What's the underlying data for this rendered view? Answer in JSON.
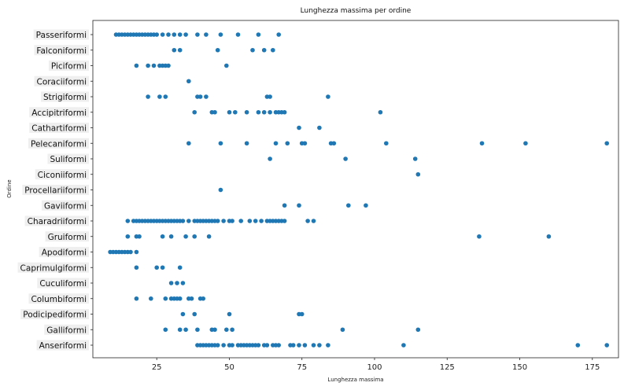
{
  "chart_data": {
    "type": "scatter",
    "title": "Lunghezza massima per ordine",
    "xlabel": "Lunghezza massima",
    "ylabel": "Ordine",
    "xlim": [
      3,
      184
    ],
    "xticks": [
      25,
      50,
      75,
      100,
      125,
      150,
      175
    ],
    "grid": false,
    "marker_color": "#1f77b4",
    "series": [
      {
        "name": "Passeriformi",
        "x": [
          11,
          12,
          13,
          14,
          15,
          16,
          17,
          18,
          19,
          20,
          21,
          22,
          23,
          24,
          25,
          27,
          29,
          31,
          33,
          35,
          39,
          42,
          47,
          53,
          60,
          67
        ]
      },
      {
        "name": "Falconiformi",
        "x": [
          31,
          33,
          46,
          58,
          62,
          65
        ]
      },
      {
        "name": "Piciformi",
        "x": [
          18,
          22,
          24,
          26,
          27,
          28,
          29,
          49
        ]
      },
      {
        "name": "Coraciiformi",
        "x": [
          36
        ]
      },
      {
        "name": "Strigiformi",
        "x": [
          22,
          26,
          28,
          39,
          40,
          42,
          63,
          64,
          84
        ]
      },
      {
        "name": "Accipitriformi",
        "x": [
          38,
          44,
          45,
          50,
          52,
          56,
          60,
          62,
          64,
          66,
          67,
          68,
          69,
          102
        ]
      },
      {
        "name": "Cathartiformi",
        "x": [
          74,
          81
        ]
      },
      {
        "name": "Pelecaniformi",
        "x": [
          36,
          47,
          56,
          66,
          70,
          75,
          76,
          85,
          86,
          104,
          137,
          152,
          180
        ]
      },
      {
        "name": "Suliformi",
        "x": [
          64,
          90,
          114
        ]
      },
      {
        "name": "Ciconiiformi",
        "x": [
          115
        ]
      },
      {
        "name": "Procellariiformi",
        "x": [
          47
        ]
      },
      {
        "name": "Gaviiformi",
        "x": [
          69,
          74,
          91,
          97
        ]
      },
      {
        "name": "Charadriiformi",
        "x": [
          15,
          17,
          18,
          19,
          20,
          21,
          22,
          23,
          24,
          25,
          26,
          27,
          28,
          29,
          30,
          31,
          32,
          33,
          34,
          36,
          38,
          39,
          40,
          41,
          42,
          43,
          44,
          45,
          46,
          48,
          50,
          51,
          54,
          57,
          59,
          61,
          63,
          64,
          65,
          66,
          67,
          68,
          69,
          77,
          79
        ]
      },
      {
        "name": "Gruiformi",
        "x": [
          15,
          18,
          19,
          27,
          30,
          35,
          38,
          43,
          136,
          160
        ]
      },
      {
        "name": "Apodiformi",
        "x": [
          9,
          10,
          11,
          12,
          13,
          14,
          15,
          16,
          18
        ]
      },
      {
        "name": "Caprimulgiformi",
        "x": [
          18,
          25,
          27,
          33
        ]
      },
      {
        "name": "Cuculiformi",
        "x": [
          30,
          32,
          34
        ]
      },
      {
        "name": "Columbiformi",
        "x": [
          18,
          23,
          28,
          30,
          31,
          32,
          33,
          36,
          37,
          40,
          41
        ]
      },
      {
        "name": "Podicipediformi",
        "x": [
          34,
          38,
          50,
          74,
          75
        ]
      },
      {
        "name": "Galliformi",
        "x": [
          28,
          33,
          35,
          39,
          44,
          45,
          49,
          51,
          89,
          115
        ]
      },
      {
        "name": "Anseriformi",
        "x": [
          39,
          40,
          41,
          42,
          43,
          44,
          45,
          46,
          48,
          50,
          51,
          53,
          54,
          55,
          56,
          57,
          58,
          59,
          60,
          62,
          63,
          65,
          66,
          67,
          71,
          72,
          74,
          76,
          79,
          81,
          84,
          110,
          170,
          180
        ]
      }
    ]
  }
}
